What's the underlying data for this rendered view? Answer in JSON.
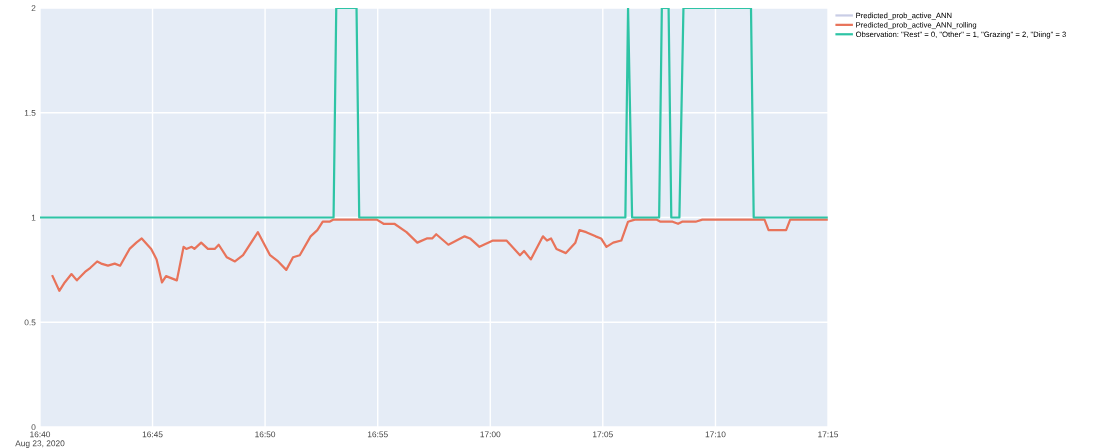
{
  "chart_data": {
    "type": "line",
    "xlim": [
      16.6667,
      17.25
    ],
    "xticks": [
      {
        "value": 16.6667,
        "label": "16:40\nAug 23, 2020"
      },
      {
        "value": 16.75,
        "label": "16:45"
      },
      {
        "value": 16.8333,
        "label": "16:50"
      },
      {
        "value": 16.9167,
        "label": "16:55"
      },
      {
        "value": 17,
        "label": "17:00"
      },
      {
        "value": 17.0833,
        "label": "17:05"
      },
      {
        "value": 17.1667,
        "label": "17:10"
      },
      {
        "value": 17.25,
        "label": "17:15"
      }
    ],
    "ylim": [
      0,
      2
    ],
    "yticks": [
      0,
      0.5,
      1,
      1.5,
      2
    ],
    "grid": true,
    "legend": "top right",
    "line_style": "solid",
    "series": [
      {
        "name": "Predicted_prob_active_ANN",
        "color": "#c9cde6"
      },
      {
        "name": "Predicted_prob_active_ANN_rolling",
        "color": "#e8735a",
        "x": [
          16.676,
          16.681,
          16.685,
          16.69,
          16.694,
          16.7,
          16.704,
          16.709,
          16.712,
          16.717,
          16.722,
          16.726,
          16.733,
          16.738,
          16.742,
          16.749,
          16.753,
          16.757,
          16.76,
          16.768,
          16.773,
          16.775,
          16.779,
          16.781,
          16.786,
          16.791,
          16.796,
          16.799,
          16.805,
          16.811,
          16.817,
          16.828,
          16.837,
          16.843,
          16.849,
          16.854,
          16.859,
          16.867,
          16.872,
          16.876,
          16.881,
          16.884,
          16.894,
          16.916,
          16.921,
          16.929,
          16.938,
          16.946,
          16.953,
          16.957,
          16.96,
          16.969,
          16.975,
          16.981,
          16.985,
          16.992,
          17.002,
          17.012,
          17.022,
          17.025,
          17.03,
          17.039,
          17.042,
          17.045,
          17.049,
          17.056,
          17.063,
          17.066,
          17.071,
          17.078,
          17.082,
          17.086,
          17.091,
          17.097,
          17.102,
          17.107,
          17.123,
          17.126,
          17.135,
          17.139,
          17.142,
          17.152,
          17.157,
          17.194,
          17.203,
          17.206,
          17.219,
          17.222,
          17.249
        ],
        "values": [
          0.72,
          0.65,
          0.69,
          0.73,
          0.7,
          0.74,
          0.76,
          0.79,
          0.78,
          0.77,
          0.78,
          0.77,
          0.85,
          0.88,
          0.9,
          0.85,
          0.8,
          0.69,
          0.72,
          0.7,
          0.86,
          0.85,
          0.86,
          0.85,
          0.88,
          0.85,
          0.85,
          0.87,
          0.81,
          0.79,
          0.82,
          0.93,
          0.82,
          0.79,
          0.75,
          0.81,
          0.82,
          0.91,
          0.94,
          0.98,
          0.98,
          0.99,
          0.99,
          0.99,
          0.97,
          0.97,
          0.93,
          0.88,
          0.9,
          0.9,
          0.92,
          0.87,
          0.89,
          0.91,
          0.9,
          0.86,
          0.89,
          0.89,
          0.82,
          0.84,
          0.8,
          0.91,
          0.89,
          0.9,
          0.85,
          0.83,
          0.88,
          0.94,
          0.93,
          0.91,
          0.9,
          0.86,
          0.88,
          0.89,
          0.98,
          0.99,
          0.99,
          0.98,
          0.98,
          0.97,
          0.98,
          0.98,
          0.99,
          0.99,
          0.99,
          0.94,
          0.94,
          0.99,
          0.99
        ]
      },
      {
        "name": "Observation: \"Rest\" = 0, \"Other\" = 1, \"Grazing\" = 2, \"Diing\" = 3",
        "color": "#2ec4a5",
        "x": [
          16.6667,
          16.884,
          16.886,
          16.901,
          16.903,
          17.1,
          17.102,
          17.105,
          17.125,
          17.127,
          17.132,
          17.134,
          17.14,
          17.143,
          17.193,
          17.195,
          17.249
        ],
        "values": [
          1,
          1,
          2,
          2,
          1,
          1,
          2,
          1,
          1,
          2,
          2,
          1,
          1,
          2,
          2,
          1,
          1
        ]
      }
    ]
  }
}
